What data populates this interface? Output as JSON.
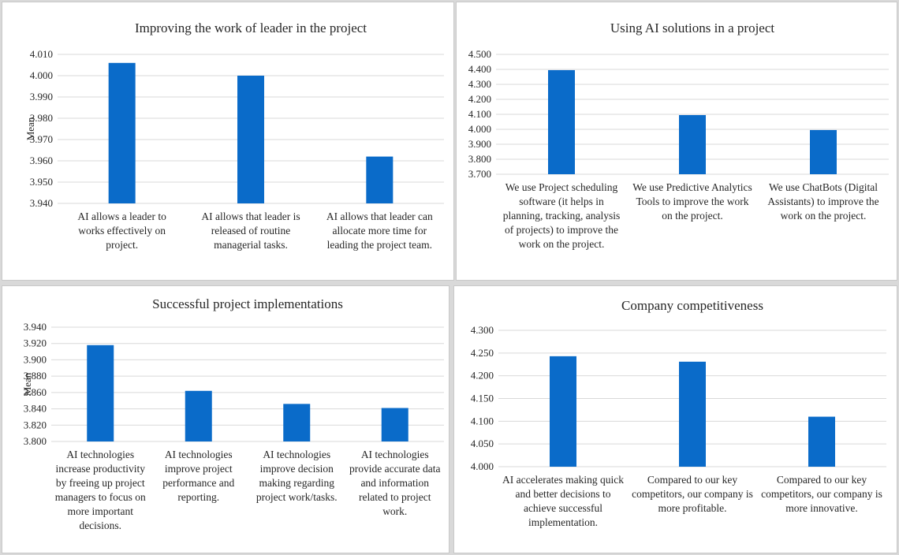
{
  "colors": {
    "bar": "#0a6bc9",
    "grid": "#d9d9d9",
    "text": "#262626"
  },
  "chart_data": [
    {
      "type": "bar",
      "title": "Improving the work of leader in the project",
      "ylabel": "Mean",
      "ylim": [
        3.94,
        4.01
      ],
      "yticks": [
        "3.940",
        "3.950",
        "3.960",
        "3.970",
        "3.980",
        "3.990",
        "4.000",
        "4.010"
      ],
      "categories": [
        "AI allows a leader to works effectively on project.",
        "AI allows that leader is released of routine managerial tasks.",
        "AI allows that leader can allocate more time for leading the project team."
      ],
      "values": [
        4.006,
        4.0,
        3.962
      ],
      "grid": true
    },
    {
      "type": "bar",
      "title": "Using AI solutions in a project",
      "ylabel": "",
      "ylim": [
        3.7,
        4.5
      ],
      "yticks": [
        "3.700",
        "3.800",
        "3.900",
        "4.000",
        "4.100",
        "4.200",
        "4.300",
        "4.400",
        "4.500"
      ],
      "categories": [
        "We use Project scheduling software (it helps in planning, tracking, analysis of projects) to improve the work on the project.",
        "We use Predictive Analytics Tools to improve the work on the project.",
        "We use ChatBots (Digital Assistants) to improve the work on the project."
      ],
      "values": [
        4.395,
        4.095,
        3.995
      ],
      "grid": true
    },
    {
      "type": "bar",
      "title": "Successful project implementations",
      "ylabel": "Mean",
      "ylim": [
        3.8,
        3.94
      ],
      "yticks": [
        "3.800",
        "3.820",
        "3.840",
        "3.860",
        "3.880",
        "3.900",
        "3.920",
        "3.940"
      ],
      "categories": [
        "AI technologies increase productivity by freeing up project managers to focus on more important decisions.",
        "AI technologies improve project performance and reporting.",
        "AI technologies improve decision making regarding project work/tasks.",
        "AI technologies provide accurate data and information related to project work."
      ],
      "values": [
        3.918,
        3.862,
        3.846,
        3.841
      ],
      "grid": true
    },
    {
      "type": "bar",
      "title": "Company competitiveness",
      "ylabel": "",
      "ylim": [
        4.0,
        4.3
      ],
      "yticks": [
        "4.000",
        "4.050",
        "4.100",
        "4.150",
        "4.200",
        "4.250",
        "4.300"
      ],
      "categories": [
        "AI accelerates making quick and better decisions to achieve successful implementation.",
        "Compared to our key competitors, our company is more profitable.",
        "Compared to our key competitors, our company is more innovative."
      ],
      "values": [
        4.243,
        4.231,
        4.11
      ],
      "grid": true
    }
  ]
}
